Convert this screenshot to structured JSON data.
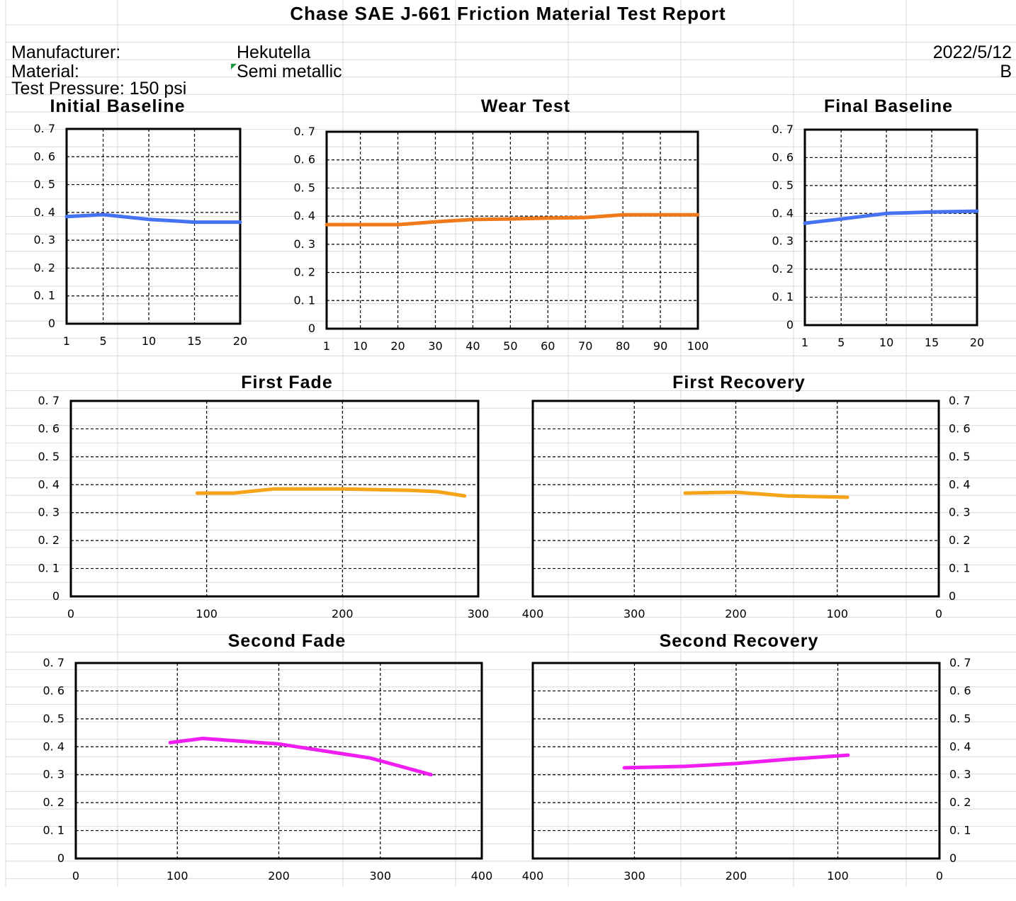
{
  "report": {
    "title": "Chase  SAE J-661 Friction Material Test Report",
    "manufacturer_label": "Manufacturer:",
    "manufacturer_value": "Hekutella",
    "date": "2022/5/12",
    "material_label": "Material:",
    "material_value": "Semi metallic",
    "grade": "B",
    "pressure": "Test Pressure: 150 psi"
  },
  "colors": {
    "blue": "#4472f0",
    "orange": "#f07a1a",
    "gold": "#f5a41a",
    "magenta": "#f01ef0",
    "grid": "#d9d9d9"
  },
  "chart_data": [
    {
      "id": "initial-baseline",
      "title": "Initial Baseline",
      "type": "line",
      "x_ticks": [
        1,
        5,
        10,
        15,
        20
      ],
      "x_tick_labels": [
        "1",
        "5",
        "10",
        "15",
        "20"
      ],
      "ylim": [
        0,
        0.7
      ],
      "y_tick_labels": [
        "0",
        "0. 1",
        "0. 2",
        "0. 3",
        "0. 4",
        "0. 5",
        "0. 6",
        "0. 7"
      ],
      "grid": true,
      "color": "blue",
      "series": [
        {
          "x": [
            1,
            5,
            10,
            15,
            20
          ],
          "y": [
            0.385,
            0.392,
            0.375,
            0.365,
            0.365
          ]
        }
      ]
    },
    {
      "id": "wear-test",
      "title": "Wear Test",
      "type": "line",
      "x_ticks": [
        1,
        10,
        20,
        30,
        40,
        50,
        60,
        70,
        80,
        90,
        100
      ],
      "x_tick_labels": [
        "1",
        "10",
        "20",
        "30",
        "40",
        "50",
        "60",
        "70",
        "80",
        "90",
        "100"
      ],
      "ylim": [
        0,
        0.7
      ],
      "y_tick_labels": [
        "0",
        "0. 1",
        "0. 2",
        "0. 3",
        "0. 4",
        "0. 5",
        "0. 6",
        "0. 7"
      ],
      "grid": true,
      "color": "orange",
      "series": [
        {
          "x": [
            1,
            10,
            20,
            30,
            40,
            50,
            60,
            70,
            80,
            90,
            100
          ],
          "y": [
            0.37,
            0.37,
            0.37,
            0.38,
            0.388,
            0.39,
            0.393,
            0.395,
            0.405,
            0.405,
            0.405
          ]
        }
      ]
    },
    {
      "id": "final-baseline",
      "title": "Final Baseline",
      "type": "line",
      "x_ticks": [
        1,
        5,
        10,
        15,
        20
      ],
      "x_tick_labels": [
        "1",
        "5",
        "10",
        "15",
        "20"
      ],
      "ylim": [
        0,
        0.7
      ],
      "y_tick_labels": [
        "0",
        "0. 1",
        "0. 2",
        "0. 3",
        "0. 4",
        "0. 5",
        "0. 6",
        "0. 7"
      ],
      "grid": true,
      "color": "blue",
      "series": [
        {
          "x": [
            1,
            5,
            10,
            15,
            20
          ],
          "y": [
            0.365,
            0.38,
            0.4,
            0.405,
            0.408
          ]
        }
      ]
    },
    {
      "id": "first-fade",
      "title": "First Fade",
      "type": "line",
      "x_ticks": [
        0,
        100,
        200,
        300
      ],
      "x_tick_labels": [
        "0",
        "100",
        "200",
        "300"
      ],
      "ylim": [
        0,
        0.7
      ],
      "y_tick_labels": [
        "0",
        "0. 1",
        "0. 2",
        "0. 3",
        "0. 4",
        "0. 5",
        "0. 6",
        "0. 7"
      ],
      "grid": true,
      "color": "gold",
      "y_side": "left",
      "series": [
        {
          "x": [
            93,
            120,
            150,
            200,
            250,
            270,
            290
          ],
          "y": [
            0.37,
            0.37,
            0.385,
            0.385,
            0.38,
            0.375,
            0.36
          ]
        }
      ]
    },
    {
      "id": "first-recovery",
      "title": "First Recovery",
      "type": "line",
      "x_ticks": [
        400,
        300,
        200,
        100,
        0
      ],
      "x_tick_labels": [
        "400",
        "300",
        "200",
        "100",
        "0"
      ],
      "reversed": true,
      "ylim": [
        0,
        0.7
      ],
      "y_tick_labels": [
        "0",
        "0. 1",
        "0. 2",
        "0. 3",
        "0. 4",
        "0. 5",
        "0. 6",
        "0. 7"
      ],
      "grid": true,
      "color": "gold",
      "y_side": "right",
      "series": [
        {
          "x": [
            250,
            200,
            150,
            90
          ],
          "y": [
            0.37,
            0.373,
            0.36,
            0.355
          ]
        }
      ]
    },
    {
      "id": "second-fade",
      "title": "Second Fade",
      "type": "line",
      "x_ticks": [
        0,
        100,
        200,
        300,
        400
      ],
      "x_tick_labels": [
        "0",
        "100",
        "200",
        "300",
        "400"
      ],
      "ylim": [
        0,
        0.7
      ],
      "y_tick_labels": [
        "0",
        "0. 1",
        "0. 2",
        "0. 3",
        "0. 4",
        "0. 5",
        "0. 6",
        "0. 7"
      ],
      "grid": true,
      "color": "magenta",
      "y_side": "left",
      "series": [
        {
          "x": [
            93,
            125,
            200,
            290,
            350
          ],
          "y": [
            0.415,
            0.43,
            0.41,
            0.36,
            0.3
          ]
        }
      ]
    },
    {
      "id": "second-recovery",
      "title": "Second Recovery",
      "type": "line",
      "x_ticks": [
        400,
        300,
        200,
        100,
        0
      ],
      "x_tick_labels": [
        "400",
        "300",
        "200",
        "100",
        "0"
      ],
      "reversed": true,
      "ylim": [
        0,
        0.7
      ],
      "y_tick_labels": [
        "0",
        "0. 1",
        "0. 2",
        "0. 3",
        "0. 4",
        "0. 5",
        "0. 6",
        "0. 7"
      ],
      "grid": true,
      "color": "magenta",
      "y_side": "right",
      "series": [
        {
          "x": [
            310,
            250,
            200,
            150,
            90
          ],
          "y": [
            0.325,
            0.33,
            0.34,
            0.355,
            0.37
          ]
        }
      ]
    }
  ]
}
